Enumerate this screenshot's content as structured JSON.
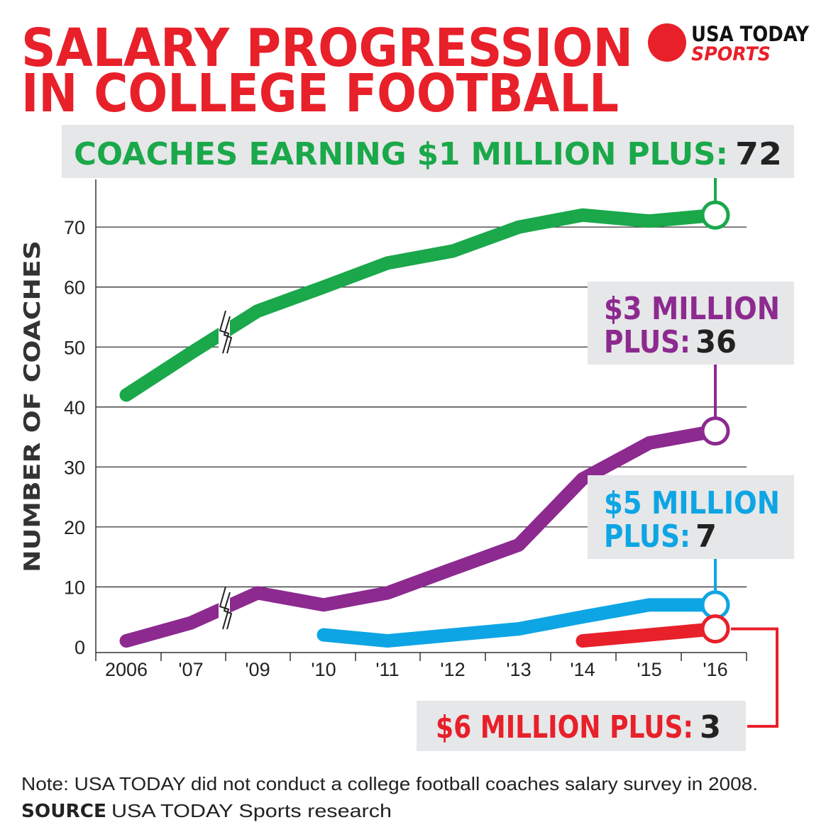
{
  "title_line1": "SALARY PROGRESSION",
  "title_line2": "IN COLLEGE FOOTBALL",
  "logo": {
    "line1": "USA TODAY",
    "line2": "SPORTS",
    "dot_color": "#e8202a"
  },
  "note": "Note: USA TODAY did not conduct a college football coaches salary survey in 2008.",
  "source_label": "SOURCE",
  "source_text": "USA TODAY Sports research",
  "chart_data": {
    "type": "line",
    "ylabel": "NUMBER OF COACHES",
    "xlabel": "",
    "ylim": [
      0,
      75
    ],
    "yticks": [
      0,
      10,
      20,
      30,
      40,
      50,
      60,
      70
    ],
    "categories": [
      "2006",
      "'07",
      "'09",
      "'10",
      "'11",
      "'12",
      "'13",
      "'14",
      "'15",
      "'16"
    ],
    "grid": true,
    "axis_break_between": [
      "'07",
      "'09"
    ],
    "series": [
      {
        "key": "one_million",
        "color": "#1aa84b",
        "values": [
          42,
          49,
          56,
          60,
          64,
          66,
          70,
          72,
          71,
          72
        ],
        "callout_label": "COACHES EARNING $1 MILLION PLUS:",
        "callout_value": "72"
      },
      {
        "key": "three_million",
        "color": "#8c2a8f",
        "values": [
          1,
          4,
          9,
          7,
          9,
          13,
          17,
          28,
          34,
          36
        ],
        "callout_label_line1": "$3 MILLION",
        "callout_label_line2": "PLUS:",
        "callout_value": "36"
      },
      {
        "key": "five_million",
        "color": "#0ea5e4",
        "values": [
          null,
          null,
          null,
          2,
          1,
          2,
          3,
          5,
          7,
          7
        ],
        "callout_label_line1": "$5 MILLION",
        "callout_label_line2": "PLUS:",
        "callout_value": "7"
      },
      {
        "key": "six_million",
        "color": "#e8202a",
        "values": [
          null,
          null,
          null,
          null,
          null,
          null,
          null,
          1,
          2,
          3
        ],
        "callout_label": "$6 MILLION PLUS:",
        "callout_value": "3"
      }
    ]
  }
}
